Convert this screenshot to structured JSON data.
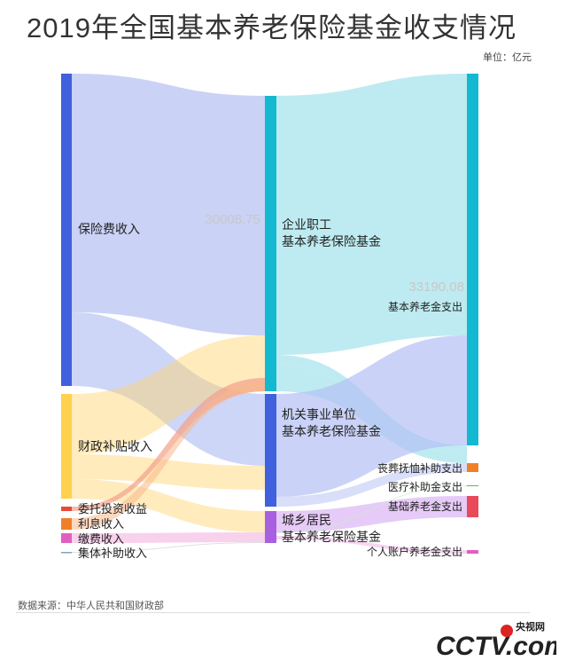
{
  "title": "2019年全国基本养老保险基金收支情况",
  "unit": "单位：亿元",
  "source": "数据来源：中华人民共和国财政部",
  "logo": {
    "text": "CCTV.com",
    "top_text": "央视网"
  },
  "chart_data": {
    "type": "sankey",
    "title": "2019年全国基本养老保险基金收支情况",
    "sources": [
      {
        "id": "s1",
        "label": "保险费收入",
        "color": "#4060dd"
      },
      {
        "id": "s2",
        "label": "财政补贴收入",
        "color": "#ffd24d"
      },
      {
        "id": "s3",
        "label": "委托投资收益",
        "color": "#e84a3a"
      },
      {
        "id": "s4",
        "label": "利息收入",
        "color": "#f07f2a"
      },
      {
        "id": "s5",
        "label": "缴费收入",
        "color": "#e060c0"
      },
      {
        "id": "s6",
        "label": "集体补助收入",
        "color": "#7aa9b0"
      }
    ],
    "middle": [
      {
        "id": "m1",
        "label_lines": [
          "企业职工",
          "基本养老保险基金"
        ],
        "color": "#13b9d0"
      },
      {
        "id": "m2",
        "label_lines": [
          "机关事业单位",
          "基本养老保险基金"
        ],
        "color": "#4060dd"
      },
      {
        "id": "m3",
        "label_lines": [
          "城乡居民",
          "基本养老保险基金"
        ],
        "color": "#a860e0"
      }
    ],
    "targets": [
      {
        "id": "t1",
        "label": "基本养老金支出",
        "color": "#13b9d0"
      },
      {
        "id": "t2",
        "label": "丧葬抚恤补助支出",
        "color": "#f07f2a"
      },
      {
        "id": "t3",
        "label": "医疗补助金支出",
        "color": "#4bbf5a"
      },
      {
        "id": "t4",
        "label": "基础养老金支出",
        "color": "#e84a5a"
      },
      {
        "id": "t5",
        "label": "个人账户养老金支出",
        "color": "#e060c0"
      }
    ],
    "value_labels": [
      {
        "node": "m1",
        "value": "30008.75"
      },
      {
        "node": "t1",
        "value": "33190.08"
      }
    ]
  }
}
